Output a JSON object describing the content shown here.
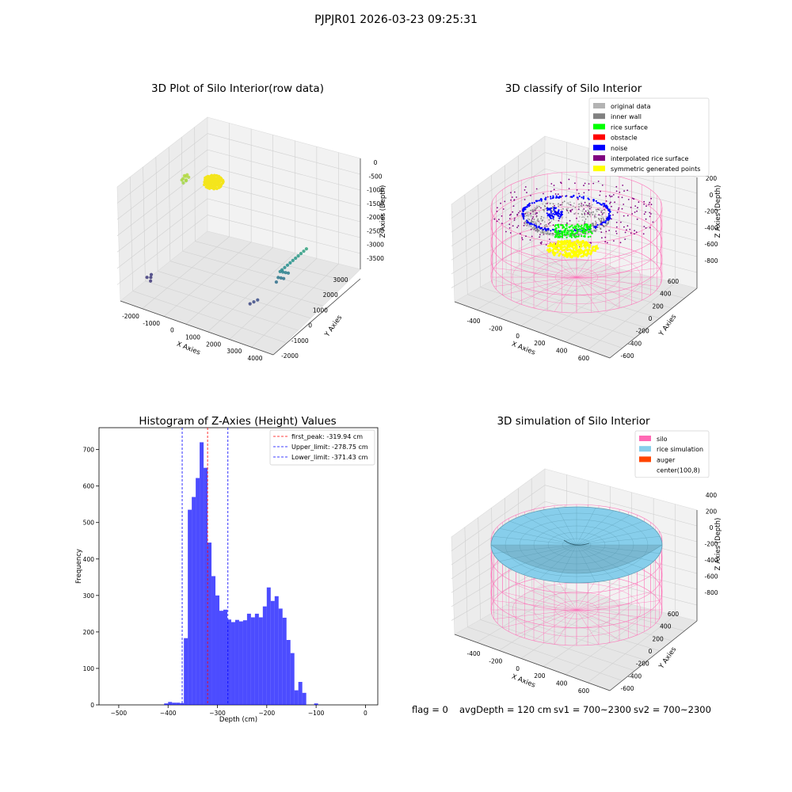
{
  "suptitle": "PJPJR01 2026-03-23 09:25:31",
  "footer": {
    "flag": "flag = 0",
    "avg_depth": "avgDepth = 120 cm",
    "sv1": "sv1 = 700~2300",
    "sv2": "sv2 = 700~2300"
  },
  "chart_data": [
    {
      "type": "scatter",
      "projection": "3d",
      "title": "3D Plot of Silo Interior(row data)",
      "xlabel": "X Axies",
      "ylabel": "Y Axies",
      "zlabel": "Z Axies (Depth)",
      "x_ticks": [
        "-2000",
        "-1000",
        "0",
        "1000",
        "2000",
        "3000",
        "4000"
      ],
      "y_ticks": [
        "-2000",
        "-1000",
        "0",
        "1000",
        "2000",
        "3000"
      ],
      "z_ticks": [
        "0",
        "-500",
        "-1000",
        "-1500",
        "-2000",
        "-2500",
        "-3000",
        "-3500"
      ],
      "xlim": [
        -2400,
        4600
      ],
      "ylim": [
        -2200,
        3200
      ],
      "zlim": [
        -3800,
        200
      ],
      "colormap": "viridis",
      "series": [
        {
          "points": [
            [
              -1700,
              -1500,
              -3100
            ],
            [
              -1600,
              -1400,
              -3120
            ],
            [
              -1500,
              -1550,
              -3150
            ],
            [
              -1650,
              -1300,
              -3080
            ],
            [
              2800,
              -1200,
              -2950
            ],
            [
              2900,
              -1100,
              -2900
            ],
            [
              3000,
              -1000,
              -2850
            ],
            [
              3600,
              -300,
              -1950
            ],
            [
              3650,
              -200,
              -1900
            ],
            [
              3700,
              -100,
              -1850
            ],
            [
              3750,
              0,
              -1800
            ],
            [
              3800,
              100,
              -1750
            ],
            [
              3850,
              200,
              -1700
            ],
            [
              3900,
              300,
              -1650
            ],
            [
              3950,
              400,
              -1600
            ],
            [
              4000,
              500,
              -1550
            ],
            [
              4050,
              600,
              -1500
            ],
            [
              3550,
              -350,
              -2000
            ],
            [
              3600,
              -250,
              -2050
            ],
            [
              3650,
              -150,
              -2100
            ],
            [
              3700,
              -50,
              -2150
            ],
            [
              3500,
              -400,
              -2200
            ],
            [
              3550,
              -300,
              -2250
            ],
            [
              3600,
              -200,
              -2300
            ],
            [
              3450,
              -450,
              -2350
            ],
            [
              -1300,
              200,
              -300
            ],
            [
              -1250,
              300,
              -250
            ],
            [
              -1200,
              250,
              -350
            ],
            [
              -1350,
              350,
              -280
            ],
            [
              -1150,
              180,
              -320
            ],
            [
              -1280,
              420,
              -260
            ],
            [
              -1220,
              100,
              -380
            ],
            [
              -1320,
              150,
              -330
            ],
            [
              -1180,
              380,
              -300
            ]
          ]
        }
      ]
    },
    {
      "type": "scatter",
      "projection": "3d",
      "title": "3D classify of Silo Interior",
      "xlabel": "X Axies",
      "ylabel": "Y Axies",
      "zlabel": "Z Axies (Depth)",
      "x_ticks": [
        "-400",
        "-200",
        "0",
        "200",
        "400",
        "600"
      ],
      "y_ticks": [
        "-600",
        "-400",
        "-200",
        "0",
        "200",
        "400",
        "600"
      ],
      "z_ticks": [
        "200",
        "0",
        "-200",
        "-400",
        "-600",
        "-800"
      ],
      "xlim": [
        -550,
        750
      ],
      "ylim": [
        -650,
        650
      ],
      "zlim": [
        -950,
        300
      ],
      "legend": [
        {
          "label": "original data",
          "color": "#b3b3b3"
        },
        {
          "label": "inner wall",
          "color": "#808080"
        },
        {
          "label": "rice surface",
          "color": "#00ff00"
        },
        {
          "label": "obstacle",
          "color": "#ff0000"
        },
        {
          "label": "noise",
          "color": "#0000ff"
        },
        {
          "label": "interpolated rice surface",
          "color": "#800080"
        },
        {
          "label": "symmetric generated points",
          "color": "#ffff00"
        }
      ],
      "legend_loc": "upper right",
      "cylinder": {
        "center": [
          100,
          8
        ],
        "radius": 600,
        "z_top": 120,
        "z_bottom": -900,
        "color": "#ff69b4"
      }
    },
    {
      "type": "histogram",
      "title": "Histogram of Z-Axies (Height) Values",
      "xlabel": "Depth (cm)",
      "ylabel": "Frequency",
      "xlim": [
        -540,
        25
      ],
      "ylim": [
        0,
        760
      ],
      "x_ticks": [
        -500,
        -400,
        -300,
        -200,
        -100,
        0
      ],
      "y_ticks": [
        0,
        100,
        200,
        300,
        400,
        500,
        600,
        700
      ],
      "bar_color": "#0000ff",
      "bin_width": 8,
      "bins": [
        [
          -408,
          4
        ],
        [
          -400,
          8
        ],
        [
          -392,
          6
        ],
        [
          -384,
          6
        ],
        [
          -376,
          5
        ],
        [
          -368,
          183
        ],
        [
          -360,
          535
        ],
        [
          -352,
          570
        ],
        [
          -344,
          622
        ],
        [
          -336,
          720
        ],
        [
          -328,
          650
        ],
        [
          -320,
          445
        ],
        [
          -312,
          353
        ],
        [
          -304,
          300
        ],
        [
          -296,
          258
        ],
        [
          -288,
          261
        ],
        [
          -280,
          234
        ],
        [
          -272,
          227
        ],
        [
          -264,
          233
        ],
        [
          -256,
          229
        ],
        [
          -248,
          232
        ],
        [
          -240,
          250
        ],
        [
          -232,
          240
        ],
        [
          -224,
          250
        ],
        [
          -216,
          240
        ],
        [
          -208,
          270
        ],
        [
          -200,
          322
        ],
        [
          -192,
          285
        ],
        [
          -184,
          298
        ],
        [
          -176,
          264
        ],
        [
          -168,
          239
        ],
        [
          -160,
          178
        ],
        [
          -152,
          142
        ],
        [
          -144,
          40
        ],
        [
          -136,
          63
        ],
        [
          -128,
          33
        ],
        [
          -120,
          0
        ],
        [
          -112,
          0
        ],
        [
          -104,
          4
        ],
        [
          -96,
          0
        ]
      ],
      "bins_note": "x values shifted so histogram spans the axis as drawn",
      "lines": [
        {
          "label": "first_peak: -319.94 cm",
          "x": -319.94,
          "color": "#ff0000"
        },
        {
          "label": "Upper_limit: -278.75 cm",
          "x": -278.75,
          "color": "#0000ff"
        },
        {
          "label": "Lower_limit: -371.43 cm",
          "x": -371.43,
          "color": "#0000ff"
        }
      ],
      "legend_loc": "upper right"
    },
    {
      "type": "surface",
      "projection": "3d",
      "title": "3D simulation of Silo Interior",
      "xlabel": "X Axies",
      "ylabel": "Y Axies",
      "zlabel": "Z Axies (Depth)",
      "x_ticks": [
        "-400",
        "-200",
        "0",
        "200",
        "400",
        "600"
      ],
      "y_ticks": [
        "-600",
        "-400",
        "-200",
        "0",
        "200",
        "400",
        "600"
      ],
      "z_ticks": [
        "400",
        "200",
        "0",
        "-200",
        "-400",
        "-600",
        "-800"
      ],
      "xlim": [
        -550,
        750
      ],
      "ylim": [
        -650,
        650
      ],
      "zlim": [
        -950,
        500
      ],
      "legend": [
        {
          "label": "silo",
          "color": "#ff69b4"
        },
        {
          "label": "rice simulation",
          "color": "#87ceeb"
        },
        {
          "label": "auger",
          "color": "#ff4500"
        },
        {
          "label": "center(100,8)",
          "color": ""
        }
      ],
      "legend_loc": "upper right",
      "cylinder": {
        "center": [
          100,
          8
        ],
        "radius": 600,
        "z_top": 120,
        "z_bottom": -900,
        "color": "#ff69b4"
      }
    }
  ]
}
